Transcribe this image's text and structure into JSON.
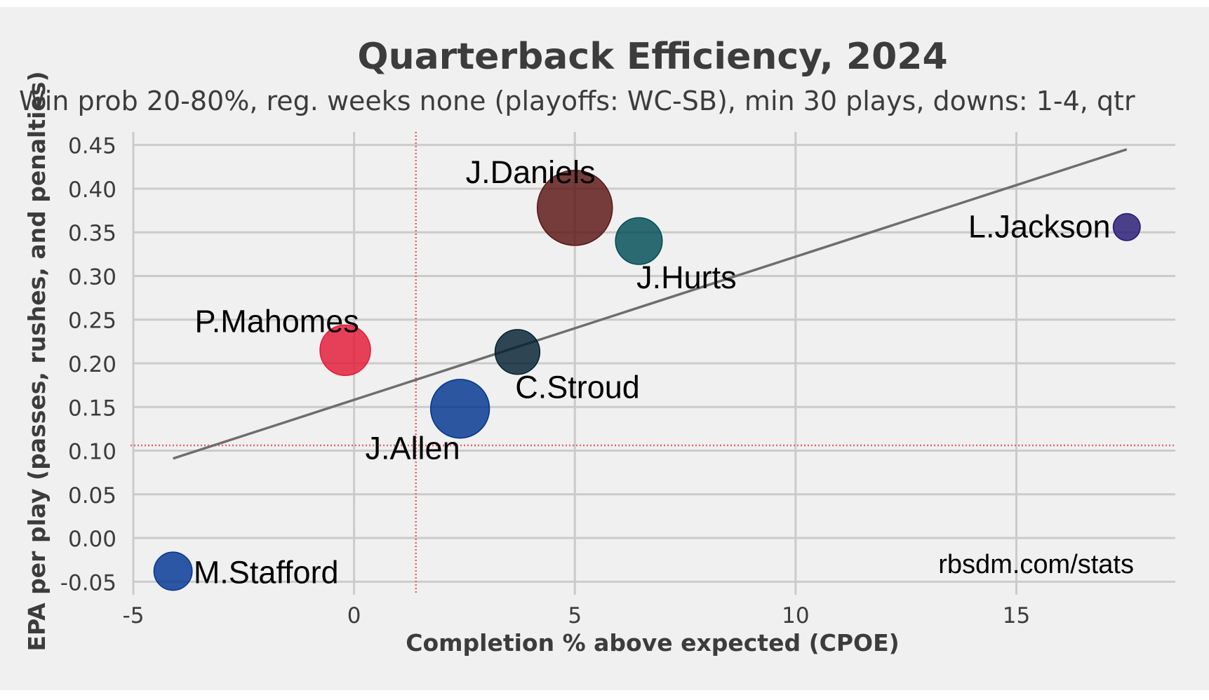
{
  "chart_data": {
    "type": "scatter",
    "title": "Quarterback Efficiency, 2024",
    "subtitle": "Win prob 20-80%, reg. weeks none (playoffs: WC-SB), min 30 plays, downs: 1-4, qtr",
    "xlabel": "Completion % above expected (CPOE)",
    "ylabel": "EPA per play (passes, rushes, and penalties)",
    "xlim": [
      -5,
      18.6
    ],
    "ylim": [
      -0.065,
      0.465
    ],
    "xticks": [
      -5,
      0,
      5,
      10,
      15
    ],
    "xtick_labels": [
      "-5",
      "0",
      "5",
      "10",
      "15"
    ],
    "yticks": [
      -0.05,
      0.0,
      0.05,
      0.1,
      0.15,
      0.2,
      0.25,
      0.3,
      0.35,
      0.4,
      0.45
    ],
    "ytick_labels": [
      "-0.05",
      "0.00",
      "0.05",
      "0.10",
      "0.15",
      "0.20",
      "0.25",
      "0.30",
      "0.35",
      "0.40",
      "0.45"
    ],
    "grid": true,
    "reference_lines": {
      "x_mean": 1.4,
      "y_mean": 0.106
    },
    "trend_line": {
      "x": [
        -4.1,
        17.5
      ],
      "y": [
        0.091,
        0.445
      ]
    },
    "watermark": "rbsdm.com/stats",
    "points": [
      {
        "name": "J.Daniels",
        "x": 5.0,
        "y": 0.378,
        "plays": 155,
        "color": "#5a1414",
        "label_pos": "top-left"
      },
      {
        "name": "J.Hurts",
        "x": 6.45,
        "y": 0.34,
        "plays": 60,
        "color": "#004c54",
        "label_pos": "bottom-right"
      },
      {
        "name": "L.Jackson",
        "x": 17.5,
        "y": 0.356,
        "plays": 20,
        "color": "#241773",
        "label_pos": "left"
      },
      {
        "name": "P.Mahomes",
        "x": -0.2,
        "y": 0.215,
        "plays": 70,
        "color": "#e31837",
        "label_pos": "top-left"
      },
      {
        "name": "C.Stroud",
        "x": 3.7,
        "y": 0.213,
        "plays": 55,
        "color": "#03202f",
        "label_pos": "bottom-right"
      },
      {
        "name": "J.Allen",
        "x": 2.4,
        "y": 0.148,
        "plays": 95,
        "color": "#00338d",
        "label_pos": "bottom-left"
      },
      {
        "name": "M.Stafford",
        "x": -4.1,
        "y": -0.038,
        "plays": 40,
        "color": "#003594",
        "label_pos": "right"
      }
    ]
  }
}
